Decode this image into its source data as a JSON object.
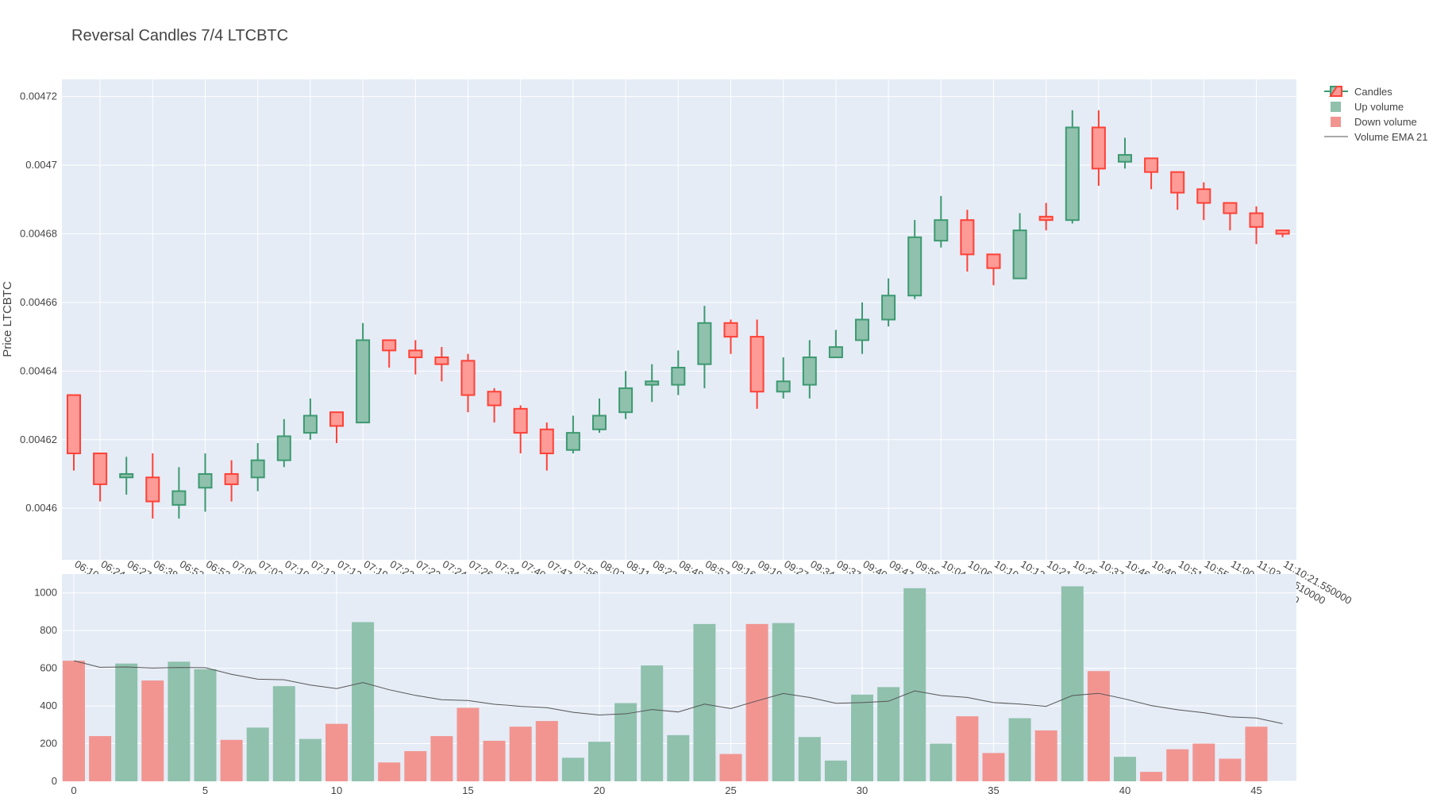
{
  "chart_data": {
    "type": "candlestick",
    "title": "Reversal Candles 7/4 LTCBTC",
    "ylabel": "Price LTCBTC",
    "price_ylim": [
      0.004585,
      0.004725
    ],
    "price_ticks": [
      "0.0046",
      "0.00462",
      "0.00464",
      "0.00466",
      "0.00468",
      "0.0047",
      "0.00472"
    ],
    "volume_ylim": [
      0,
      1100
    ],
    "volume_ticks": [
      "0",
      "200",
      "400",
      "600",
      "800",
      "1000"
    ],
    "volume_xticks": [
      "0",
      "5",
      "10",
      "15",
      "20",
      "25",
      "30",
      "35",
      "40",
      "45"
    ],
    "legend": [
      "Candles",
      "Up volume",
      "Down volume",
      "Volume EMA 21"
    ],
    "colors": {
      "up": "#3d9970",
      "down": "#ff4136",
      "up_fill": "#8fc1ad",
      "down_fill": "#ff9b96",
      "up_volume": "#8fc1ad",
      "down_volume": "#f29591",
      "ema": "#555555",
      "plot_bg": "#e5ecf6",
      "grid": "#ffffff"
    },
    "timestamps": [
      "06:10:33.753000",
      "06:24:19.687000",
      "06:27:35.091000",
      "06:38:49.642000",
      "06:52:02.744000",
      "06:53:26.780000",
      "07:00:03.362000",
      "07:03:41.508000",
      "07:10:13.486000",
      "07:12:42.591000",
      "07:13:33.892000",
      "07:19:44.616000",
      "07:23:08.675000",
      "07:23:35.648000",
      "07:24:33.664000",
      "07:26:48.424000",
      "07:34:18.499000",
      "07:40:10.609000",
      "07:47:06.340000",
      "07:56:07.557000",
      "08:02:45.113000",
      "08:11:34.304000",
      "08:22:28.429000",
      "08:48:58.640000",
      "08:57:38.538000",
      "09:16:34.010000",
      "09:19:24.287000",
      "09:27:11.683000",
      "09:34:38.759000",
      "09:37:40.519000",
      "09:40:01.635000",
      "09:47:35.303000",
      "09:56:07.129000",
      "10:04:41.114000",
      "10:06:19.954000",
      "10:10:51.261000",
      "10:13:54.379000",
      "10:21:46.790000",
      "10:25:38.507000",
      "10:37:35.798000",
      "10:46:12.455000",
      "10:49:37.505000",
      "10:51:52.740000",
      "10:55:17.971000",
      "11:00:31.656000",
      "11:03:49.510000",
      "11:10:21.550000"
    ],
    "open": [
      0.004633,
      0.004616,
      0.004609,
      0.004609,
      0.004601,
      0.004606,
      0.00461,
      0.004609,
      0.004614,
      0.004622,
      0.004628,
      0.004625,
      0.004649,
      0.004646,
      0.004644,
      0.004643,
      0.004634,
      0.004629,
      0.004623,
      0.004617,
      0.004623,
      0.004628,
      0.004636,
      0.004636,
      0.004642,
      0.004654,
      0.00465,
      0.004634,
      0.004636,
      0.004644,
      0.004649,
      0.004655,
      0.004662,
      0.004678,
      0.004684,
      0.004674,
      0.004667,
      0.004685,
      0.004684,
      0.004711,
      0.004701,
      0.004702,
      0.004698,
      0.004693,
      0.004689,
      0.004686,
      0.004681
    ],
    "high": [
      0.004633,
      0.004616,
      0.004615,
      0.004616,
      0.004612,
      0.004616,
      0.004614,
      0.004619,
      0.004626,
      0.004632,
      0.004628,
      0.004654,
      0.004649,
      0.004649,
      0.004647,
      0.004645,
      0.004635,
      0.00463,
      0.004625,
      0.004627,
      0.004632,
      0.00464,
      0.004642,
      0.004646,
      0.004659,
      0.004655,
      0.004655,
      0.004644,
      0.004649,
      0.004652,
      0.00466,
      0.004667,
      0.004684,
      0.004691,
      0.004687,
      0.004674,
      0.004686,
      0.004689,
      0.004716,
      0.004716,
      0.004708,
      0.004702,
      0.004698,
      0.004695,
      0.004689,
      0.004688,
      0.004681
    ],
    "low": [
      0.004611,
      0.004602,
      0.004604,
      0.004597,
      0.004597,
      0.004599,
      0.004602,
      0.004605,
      0.004612,
      0.00462,
      0.004619,
      0.004625,
      0.004641,
      0.004639,
      0.004637,
      0.004628,
      0.004625,
      0.004616,
      0.004611,
      0.004616,
      0.004622,
      0.004626,
      0.004631,
      0.004633,
      0.004635,
      0.004645,
      0.004629,
      0.004632,
      0.004632,
      0.004644,
      0.004645,
      0.004653,
      0.004661,
      0.004676,
      0.004669,
      0.004665,
      0.004667,
      0.004681,
      0.004683,
      0.004694,
      0.004699,
      0.004693,
      0.004687,
      0.004684,
      0.004681,
      0.004677,
      0.004679
    ],
    "close": [
      0.004616,
      0.004607,
      0.00461,
      0.004602,
      0.004605,
      0.00461,
      0.004607,
      0.004614,
      0.004621,
      0.004627,
      0.004624,
      0.004649,
      0.004646,
      0.004644,
      0.004642,
      0.004633,
      0.00463,
      0.004622,
      0.004616,
      0.004622,
      0.004627,
      0.004635,
      0.004637,
      0.004641,
      0.004654,
      0.00465,
      0.004634,
      0.004637,
      0.004644,
      0.004647,
      0.004655,
      0.004662,
      0.004679,
      0.004684,
      0.004674,
      0.00467,
      0.004681,
      0.004684,
      0.004711,
      0.004699,
      0.004703,
      0.004698,
      0.004692,
      0.004689,
      0.004686,
      0.004682,
      0.00468
    ],
    "volume": [
      640,
      240,
      625,
      535,
      635,
      595,
      220,
      285,
      505,
      225,
      305,
      845,
      100,
      160,
      240,
      390,
      215,
      290,
      320,
      125,
      210,
      415,
      615,
      245,
      835,
      145,
      835,
      840,
      235,
      110,
      460,
      500,
      1025,
      200,
      345,
      150,
      335,
      270,
      1035,
      585,
      130,
      50,
      170,
      200,
      120,
      290,
      0
    ],
    "volume_ema": [
      640,
      605,
      607,
      601,
      604,
      603,
      568,
      542,
      539,
      511,
      492,
      524,
      486,
      456,
      433,
      429,
      409,
      398,
      391,
      366,
      352,
      358,
      381,
      368,
      410,
      386,
      427,
      466,
      445,
      414,
      418,
      425,
      480,
      455,
      445,
      418,
      410,
      398,
      455,
      467,
      437,
      402,
      380,
      364,
      342,
      336,
      306
    ]
  }
}
